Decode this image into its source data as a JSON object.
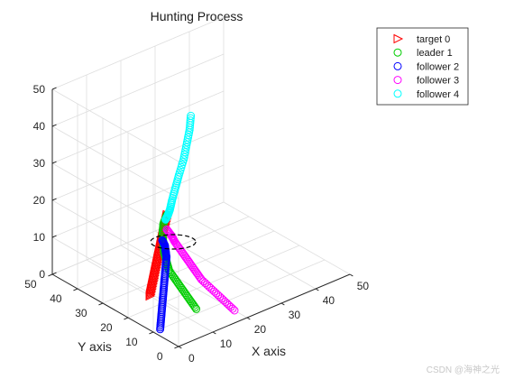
{
  "chart_data": {
    "type": "scatter",
    "title": "Hunting Process",
    "xlabel": "X axis",
    "ylabel": "Y axis",
    "zlabel": "",
    "xlim": [
      0,
      50
    ],
    "ylim": [
      0,
      50
    ],
    "zlim": [
      0,
      50
    ],
    "xticks": [
      "0",
      "10",
      "20",
      "30",
      "40",
      "50"
    ],
    "yticks": [
      "0",
      "10",
      "20",
      "30",
      "40",
      "50"
    ],
    "zticks": [
      "0",
      "10",
      "20",
      "30",
      "40",
      "50"
    ],
    "grid": true,
    "view": "3d",
    "legend_position": "top-right",
    "series": [
      {
        "name": "target 0",
        "color": "#ff0000",
        "marker": "triangle-right",
        "points": [
          [
            10,
            25,
            0
          ],
          [
            10.5,
            25,
            2
          ],
          [
            11,
            25,
            4
          ],
          [
            11.5,
            25,
            6
          ],
          [
            12,
            25,
            8
          ],
          [
            12.5,
            25,
            10
          ],
          [
            13,
            25,
            12
          ],
          [
            13.5,
            25,
            14
          ],
          [
            14,
            25,
            16
          ],
          [
            14.5,
            25,
            18
          ],
          [
            15,
            25,
            20
          ]
        ]
      },
      {
        "name": "leader 1",
        "color": "#00cc00",
        "marker": "circle",
        "points": [
          [
            14,
            12,
            0
          ],
          [
            13.5,
            14,
            2
          ],
          [
            13,
            16,
            4
          ],
          [
            12.5,
            18,
            6
          ],
          [
            12,
            20,
            8
          ],
          [
            12,
            21,
            10
          ],
          [
            12,
            22,
            12
          ],
          [
            12.5,
            23,
            14
          ],
          [
            13,
            24,
            16
          ],
          [
            14,
            25,
            18
          ],
          [
            15,
            25,
            20
          ]
        ]
      },
      {
        "name": "follower 2",
        "color": "#0000ff",
        "marker": "circle",
        "points": [
          [
            2,
            10,
            0
          ],
          [
            3,
            11,
            2
          ],
          [
            4,
            12,
            4
          ],
          [
            5,
            13,
            6
          ],
          [
            6,
            14,
            8
          ],
          [
            7,
            15,
            10
          ],
          [
            8,
            16,
            12
          ],
          [
            9,
            17,
            14
          ],
          [
            9.5,
            18,
            15
          ],
          [
            10,
            19,
            16
          ],
          [
            10,
            20,
            17
          ]
        ]
      },
      {
        "name": "follower 3",
        "color": "#ff00ff",
        "marker": "circle",
        "points": [
          [
            20,
            5,
            0
          ],
          [
            19,
            8,
            2
          ],
          [
            18,
            11,
            4
          ],
          [
            17,
            14,
            6
          ],
          [
            16.5,
            16,
            8
          ],
          [
            16,
            18,
            10
          ],
          [
            15.5,
            20,
            12
          ],
          [
            15,
            22,
            14
          ],
          [
            15,
            23,
            15
          ],
          [
            15,
            25,
            16
          ]
        ]
      },
      {
        "name": "follower 4",
        "color": "#00ffff",
        "marker": "circle",
        "points": [
          [
            22,
            25,
            44
          ],
          [
            22,
            25.5,
            40
          ],
          [
            21.5,
            26,
            36
          ],
          [
            21,
            26.5,
            32
          ],
          [
            20,
            27,
            28
          ],
          [
            19,
            27,
            25
          ],
          [
            18,
            27,
            22
          ],
          [
            17,
            26.5,
            20
          ],
          [
            16,
            26,
            19
          ],
          [
            15,
            25.5,
            18.5
          ]
        ]
      }
    ]
  }
}
